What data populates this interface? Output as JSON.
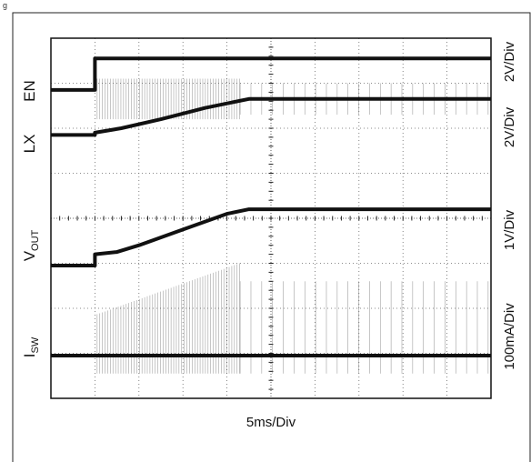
{
  "figure": {
    "corner_mark": "g"
  },
  "chart_data": {
    "type": "line",
    "title": "",
    "xlabel": "5ms/Div",
    "divisions": {
      "x": 10,
      "y": 8
    },
    "channels": [
      {
        "id": "EN",
        "label": "EN",
        "sub": "",
        "scale": "2V/Div"
      },
      {
        "id": "LX",
        "label": "LX",
        "sub": "",
        "scale": "2V/Div"
      },
      {
        "id": "VOUT",
        "label": "V",
        "sub": "OUT",
        "scale": "1V/Div"
      },
      {
        "id": "ISW",
        "label": "I",
        "sub": "SW",
        "scale": "100mA/Div"
      }
    ],
    "series": [
      {
        "name": "EN",
        "points": [
          [
            0,
            6.85
          ],
          [
            1.0,
            6.85
          ],
          [
            1.0,
            7.55
          ],
          [
            10,
            7.55
          ]
        ]
      },
      {
        "name": "LX",
        "points": [
          [
            0,
            5.85
          ],
          [
            1.0,
            5.85
          ],
          [
            1.0,
            5.9
          ],
          [
            1.6,
            6.0
          ],
          [
            2.5,
            6.2
          ],
          [
            3.5,
            6.45
          ],
          [
            4.5,
            6.65
          ],
          [
            10,
            6.65
          ]
        ]
      },
      {
        "name": "VOUT",
        "points": [
          [
            0,
            2.95
          ],
          [
            1.0,
            2.95
          ],
          [
            1.0,
            3.2
          ],
          [
            1.5,
            3.25
          ],
          [
            2.0,
            3.4
          ],
          [
            3.0,
            3.75
          ],
          [
            4.0,
            4.1
          ],
          [
            4.5,
            4.2
          ],
          [
            10,
            4.2
          ]
        ]
      },
      {
        "name": "ISW",
        "points": [
          [
            0,
            0.95
          ],
          [
            10,
            0.95
          ]
        ]
      }
    ]
  }
}
